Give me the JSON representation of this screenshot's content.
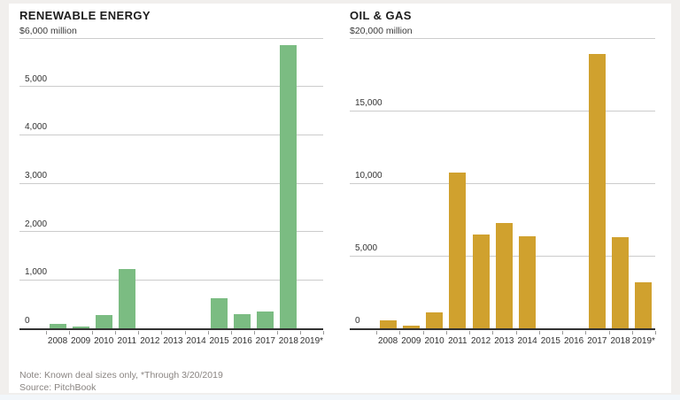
{
  "page": {
    "note": "Note: Known deal sizes only, *Through 3/20/2019",
    "source": "Source: PitchBook"
  },
  "colors": {
    "renewable_bar": "#7bbc82",
    "oil_gas_bar": "#d0a12e",
    "gridline": "#cccccc",
    "baseline": "#323232",
    "title_text": "#1c1c1c",
    "axis_text": "#333333",
    "note_text": "#8a8582",
    "frame_background": "#f1efed",
    "card_background": "#ffffff"
  },
  "chart_data": [
    {
      "type": "bar",
      "title": "RENEWABLE ENERGY",
      "unit_label": "$6,000 million",
      "xlabel": "",
      "ylabel": "$ million",
      "ylim": [
        0,
        6000
      ],
      "grid": true,
      "legend": "none",
      "bar_color": "#7bbc82",
      "yticks": [
        {
          "value": 6000,
          "label": ""
        },
        {
          "value": 5000,
          "label": "5,000"
        },
        {
          "value": 4000,
          "label": "4,000"
        },
        {
          "value": 3000,
          "label": "3,000"
        },
        {
          "value": 2000,
          "label": "2,000"
        },
        {
          "value": 1000,
          "label": "1,000"
        },
        {
          "value": 0,
          "label": "0"
        }
      ],
      "categories": [
        "2008",
        "2009",
        "2010",
        "2011",
        "2012",
        "2013",
        "2014",
        "2015",
        "2016",
        "2017",
        "2018",
        "2019*"
      ],
      "values": [
        100,
        40,
        280,
        1230,
        0,
        0,
        0,
        630,
        300,
        340,
        5850,
        0
      ]
    },
    {
      "type": "bar",
      "title": "OIL & GAS",
      "unit_label": "$20,000 million",
      "xlabel": "",
      "ylabel": "$ million",
      "ylim": [
        0,
        20000
      ],
      "grid": true,
      "legend": "none",
      "bar_color": "#d0a12e",
      "yticks": [
        {
          "value": 20000,
          "label": ""
        },
        {
          "value": 15000,
          "label": "15,000"
        },
        {
          "value": 10000,
          "label": "10,000"
        },
        {
          "value": 5000,
          "label": "5,000"
        },
        {
          "value": 0,
          "label": "0"
        }
      ],
      "categories": [
        "2008",
        "2009",
        "2010",
        "2011",
        "2012",
        "2013",
        "2014",
        "2015",
        "2016",
        "2017",
        "2018",
        "2019*"
      ],
      "values": [
        550,
        200,
        1100,
        10750,
        6470,
        7250,
        6370,
        0,
        0,
        18900,
        6270,
        3200
      ]
    }
  ]
}
